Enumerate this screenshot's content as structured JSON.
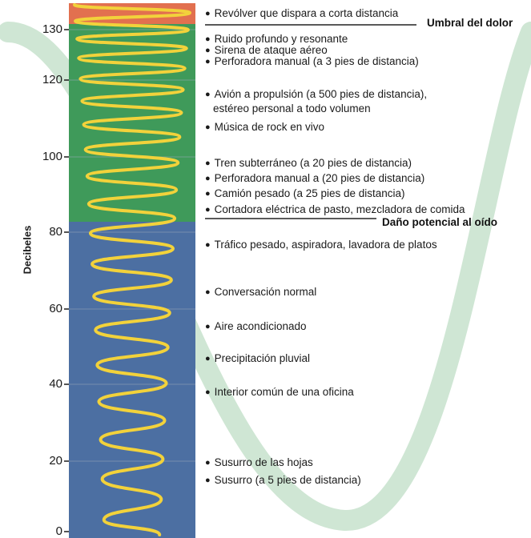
{
  "axis": {
    "label": "Decibeles",
    "ticks": [
      "130",
      "120",
      "100",
      "80",
      "60",
      "40",
      "20",
      "0"
    ]
  },
  "thresholds": {
    "pain": "Umbral del dolor",
    "damage": "Daño potencial al oído"
  },
  "items": [
    {
      "text": "Revólver que dispara a corta distancia"
    },
    {
      "text": "Ruido profundo y resonante"
    },
    {
      "text": "Sirena de ataque aéreo"
    },
    {
      "text": "Perforadora manual (a 3 pies de distancia)"
    },
    {
      "text": "Avión a propulsión (a 500 pies de distancia),",
      "cont": "estéreo personal a todo volumen"
    },
    {
      "text": "Música de rock en vivo"
    },
    {
      "text": "Tren subterráneo (a 20 pies de distancia)"
    },
    {
      "text": "Perforadora manual a (20 pies de distancia)"
    },
    {
      "text": "Camión pesado (a 25 pies de distancia)"
    },
    {
      "text": "Cortadora eléctrica de pasto, mezcladora de comida"
    },
    {
      "text": "Tráfico pesado, aspiradora, lavadora de platos"
    },
    {
      "text": "Conversación normal"
    },
    {
      "text": "Aire acondicionado"
    },
    {
      "text": "Precipitación pluvial"
    },
    {
      "text": "Interior común de una oficina"
    },
    {
      "text": "Susurro de las hojas"
    },
    {
      "text": "Susurro (a 5 pies de distancia)"
    }
  ],
  "colors": {
    "danger_zone": "#e2704f",
    "loud_zone": "#3f9a5a",
    "safe_zone": "#4c6fa2",
    "wave": "#f2d23b",
    "background_wave": "#cfe6d4"
  }
}
